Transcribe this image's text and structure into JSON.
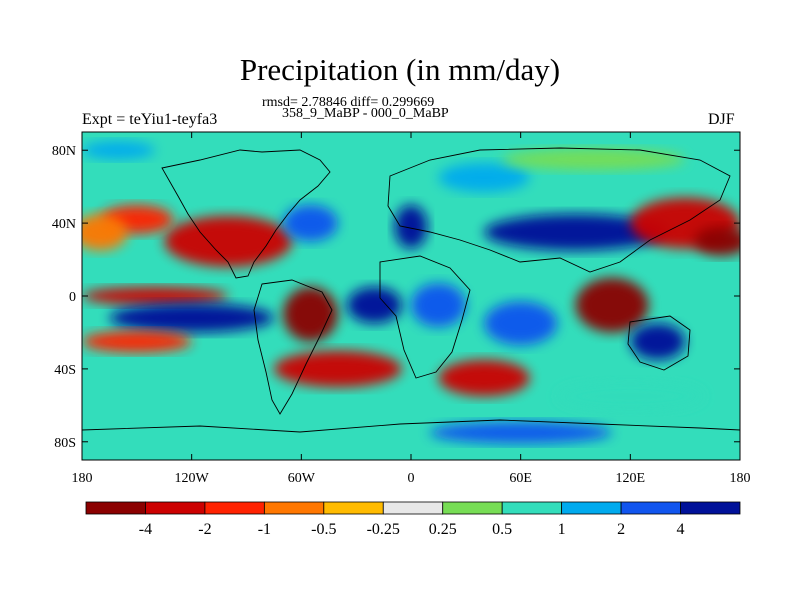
{
  "title": "Precipitation (in mm/day)",
  "stats_line": "rmsd= 2.78846 diff= 0.299669",
  "period_line": "358_9_MaBP - 000_0_MaBP",
  "left_label": "Expt = teYiu1-teyfa3",
  "right_label": "DJF",
  "map": {
    "projection": "cylindrical-equidistant",
    "lon_range": [
      -180,
      180
    ],
    "lat_range": [
      -90,
      90
    ],
    "lat_ticks": [
      {
        "value": 80,
        "label": "80N"
      },
      {
        "value": 40,
        "label": "40N"
      },
      {
        "value": 0,
        "label": "0"
      },
      {
        "value": -40,
        "label": "40S"
      },
      {
        "value": -80,
        "label": "80S"
      }
    ],
    "lon_ticks": [
      {
        "value": -180,
        "label": "180"
      },
      {
        "value": -120,
        "label": "120W"
      },
      {
        "value": -60,
        "label": "60W"
      },
      {
        "value": 0,
        "label": "0"
      },
      {
        "value": 60,
        "label": "60E"
      },
      {
        "value": 120,
        "label": "120E"
      },
      {
        "value": 180,
        "label": "180"
      }
    ]
  },
  "colorbar": {
    "colors": [
      "#8b0000",
      "#cc0000",
      "#ff2200",
      "#ff7700",
      "#ffbb00",
      "#e8e8e8",
      "#77dd55",
      "#33ddbb",
      "#00aaee",
      "#1155ee",
      "#001199"
    ],
    "labels": [
      "-4",
      "-2",
      "-1",
      "-0.5",
      "-0.25",
      "0.25",
      "0.5",
      "1",
      "2",
      "4"
    ]
  },
  "field_blobs": [
    {
      "lon": -100,
      "lat": 30,
      "rx": 35,
      "ry": 14,
      "c": 1
    },
    {
      "lon": -150,
      "lat": 42,
      "rx": 20,
      "ry": 8,
      "c": 2
    },
    {
      "lon": -170,
      "lat": 35,
      "rx": 15,
      "ry": 10,
      "c": 3
    },
    {
      "lon": -55,
      "lat": 40,
      "rx": 15,
      "ry": 10,
      "c": 9
    },
    {
      "lon": 0,
      "lat": 38,
      "rx": 9,
      "ry": 12,
      "c": 10
    },
    {
      "lon": 40,
      "lat": 65,
      "rx": 25,
      "ry": 8,
      "c": 8
    },
    {
      "lon": 90,
      "lat": 35,
      "rx": 50,
      "ry": 10,
      "c": 10
    },
    {
      "lon": 150,
      "lat": 40,
      "rx": 30,
      "ry": 14,
      "c": 1
    },
    {
      "lon": 170,
      "lat": 30,
      "rx": 15,
      "ry": 8,
      "c": 0
    },
    {
      "lon": -140,
      "lat": 0,
      "rx": 40,
      "ry": 5,
      "c": 1
    },
    {
      "lon": -120,
      "lat": -12,
      "rx": 45,
      "ry": 8,
      "c": 10
    },
    {
      "lon": -150,
      "lat": -25,
      "rx": 30,
      "ry": 6,
      "c": 2
    },
    {
      "lon": -55,
      "lat": -10,
      "rx": 15,
      "ry": 15,
      "c": 0
    },
    {
      "lon": -20,
      "lat": -5,
      "rx": 15,
      "ry": 10,
      "c": 10
    },
    {
      "lon": 15,
      "lat": -5,
      "rx": 15,
      "ry": 12,
      "c": 9
    },
    {
      "lon": 60,
      "lat": -15,
      "rx": 20,
      "ry": 12,
      "c": 9
    },
    {
      "lon": 110,
      "lat": -5,
      "rx": 20,
      "ry": 15,
      "c": 0
    },
    {
      "lon": 135,
      "lat": -25,
      "rx": 15,
      "ry": 10,
      "c": 10
    },
    {
      "lon": -40,
      "lat": -40,
      "rx": 35,
      "ry": 10,
      "c": 1
    },
    {
      "lon": 40,
      "lat": -45,
      "rx": 25,
      "ry": 10,
      "c": 1
    },
    {
      "lon": 120,
      "lat": -55,
      "rx": 40,
      "ry": 8,
      "c": 7
    },
    {
      "lon": 60,
      "lat": -75,
      "rx": 50,
      "ry": 6,
      "c": 9
    },
    {
      "lon": -160,
      "lat": 80,
      "rx": 20,
      "ry": 5,
      "c": 8
    },
    {
      "lon": 100,
      "lat": 75,
      "rx": 50,
      "ry": 6,
      "c": 6
    }
  ]
}
